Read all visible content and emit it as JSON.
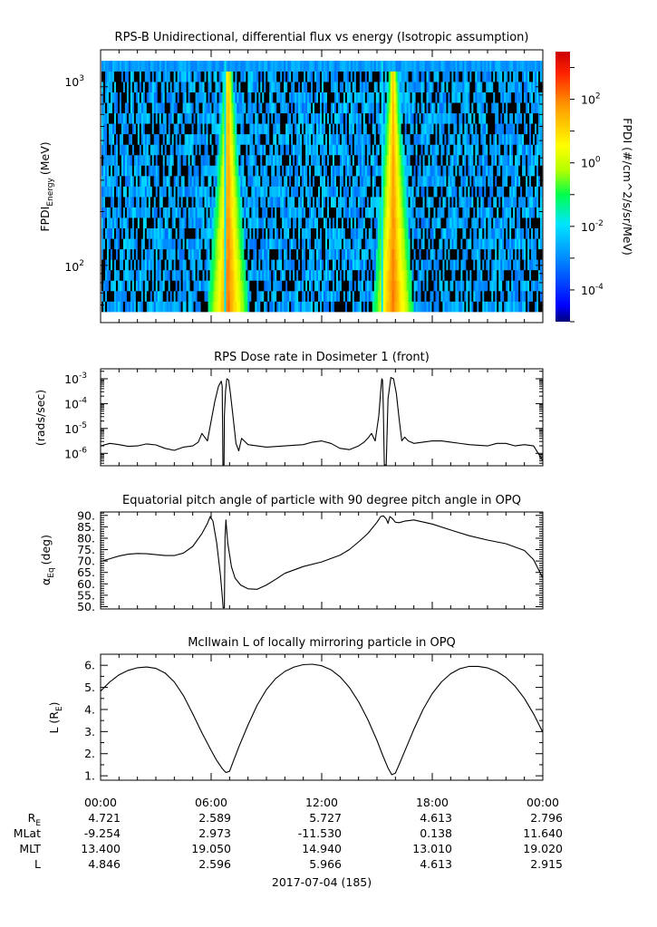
{
  "chart_data": [
    {
      "type": "heatmap",
      "title": "RPS-B  Unidirectional, differential flux vs energy (Isotropic assumption)",
      "ylabel_main": "FPDI",
      "ylabel_sub": "Energy",
      "ylabel_unit": "(MeV)",
      "yscale": "log",
      "ylim": [
        55,
        1400
      ],
      "ytick_labels": [
        {
          "value": 1000,
          "base": "10",
          "exp": "3"
        },
        {
          "value": 100,
          "base": "10",
          "exp": "2"
        }
      ],
      "energy_bin_count": 24,
      "time_bin_count": 244,
      "x_range_hours": [
        0,
        24
      ],
      "enhancements": [
        {
          "center_hours": 6.9,
          "min_half_width_hours": 0.28,
          "max_half_width_hours": 1.1,
          "peak_log10_flux": 2.2
        },
        {
          "center_hours": 15.9,
          "min_half_width_hours": 0.28,
          "max_half_width_hours": 1.1,
          "peak_log10_flux": 2.2
        }
      ],
      "gaps_hours": [
        [
          6.65,
          6.78
        ],
        [
          15.2,
          15.36
        ]
      ],
      "colorbar": {
        "label": "FPDI (#/cm^2/s/sr/MeV)",
        "scale": "log",
        "range_log10": [
          -5,
          3.5
        ],
        "ticks": [
          {
            "value_log10": 2,
            "base": "10",
            "exp": "2"
          },
          {
            "value_log10": 0,
            "base": "10",
            "exp": "0"
          },
          {
            "value_log10": -2,
            "base": "10",
            "exp": "-2"
          },
          {
            "value_log10": -4,
            "base": "10",
            "exp": "-4"
          }
        ],
        "colors": [
          "#00007a",
          "#0000ff",
          "#0080ff",
          "#00e5ff",
          "#00ff4c",
          "#b3ff00",
          "#ffff00",
          "#ff9900",
          "#ff2200",
          "#cc0000"
        ]
      }
    },
    {
      "type": "line",
      "title": "RPS  Dose rate in Dosimeter 1 (front)",
      "ylabel": "(rads/sec)",
      "yscale": "log",
      "ylim_log10": [
        -6.5,
        -2.6
      ],
      "ytick_labels": [
        {
          "value_log10": -3,
          "base": "10",
          "exp": "-3"
        },
        {
          "value_log10": -4,
          "base": "10",
          "exp": "-4"
        },
        {
          "value_log10": -5,
          "base": "10",
          "exp": "-5"
        },
        {
          "value_log10": -6,
          "base": "10",
          "exp": "-6"
        }
      ],
      "x_hours": [
        0,
        0.5,
        1,
        1.5,
        2,
        2.5,
        3,
        3.5,
        4,
        4.5,
        5,
        5.3,
        5.5,
        5.8,
        6.0,
        6.2,
        6.4,
        6.55,
        6.6,
        6.62,
        6.64,
        6.7,
        6.72,
        6.78,
        6.85,
        6.95,
        7.05,
        7.2,
        7.35,
        7.5,
        7.65,
        7.8,
        8.0,
        8.5,
        9,
        10,
        11,
        11.5,
        12,
        12.5,
        13,
        13.5,
        14,
        14.3,
        14.5,
        14.7,
        14.9,
        15.1,
        15.2,
        15.26,
        15.3,
        15.34,
        15.4,
        15.5,
        15.6,
        15.75,
        15.9,
        16.05,
        16.2,
        16.35,
        16.5,
        16.7,
        17,
        17.5,
        18,
        18.5,
        19,
        20,
        21,
        21.5,
        22,
        22.5,
        23,
        23.5,
        24
      ],
      "y_log10": [
        -5.7,
        -5.6,
        -5.65,
        -5.72,
        -5.7,
        -5.62,
        -5.66,
        -5.8,
        -5.88,
        -5.75,
        -5.7,
        -5.55,
        -5.2,
        -5.5,
        -4.7,
        -3.9,
        -3.3,
        -3.1,
        -3.3,
        -4.8,
        -6.5,
        -6.5,
        -4.5,
        -3.5,
        -3.0,
        -3.05,
        -3.6,
        -4.6,
        -5.6,
        -5.9,
        -5.4,
        -5.5,
        -5.65,
        -5.7,
        -5.75,
        -5.7,
        -5.65,
        -5.55,
        -5.5,
        -5.6,
        -5.8,
        -5.85,
        -5.7,
        -5.55,
        -5.4,
        -5.2,
        -5.5,
        -4.5,
        -3.5,
        -3.0,
        -3.05,
        -4.0,
        -6.5,
        -6.5,
        -3.8,
        -2.95,
        -3.0,
        -3.6,
        -4.6,
        -5.5,
        -5.35,
        -5.5,
        -5.6,
        -5.55,
        -5.5,
        -5.5,
        -5.55,
        -5.65,
        -5.7,
        -5.6,
        -5.6,
        -5.7,
        -5.65,
        -5.7,
        -6.3
      ]
    },
    {
      "type": "line",
      "title": "Equatorial pitch angle of particle with 90 degree pitch angle in OPQ",
      "ylabel_main": "α",
      "ylabel_sub": "Eq",
      "ylabel_unit": "(deg)",
      "ylim": [
        49,
        91.5
      ],
      "yticks": [
        "90.",
        "85.",
        "80.",
        "75.",
        "70.",
        "65.",
        "60.",
        "55.",
        "50."
      ],
      "x_hours": [
        0,
        0.5,
        1,
        1.5,
        2,
        2.5,
        3,
        3.5,
        4,
        4.5,
        5,
        5.5,
        5.8,
        5.95,
        6.1,
        6.3,
        6.5,
        6.6,
        6.65,
        6.72,
        6.75,
        6.8,
        6.9,
        7.1,
        7.3,
        7.6,
        8,
        8.5,
        9,
        9.5,
        10,
        11,
        12,
        13,
        13.5,
        14,
        14.5,
        15,
        15.2,
        15.35,
        15.5,
        15.6,
        15.7,
        15.85,
        16,
        16.2,
        16.5,
        17,
        18,
        19,
        20,
        21,
        22,
        23,
        23.5,
        24
      ],
      "y": [
        69.8,
        71,
        72.2,
        73,
        73.3,
        73.2,
        72.8,
        72.4,
        72.4,
        73.5,
        76.4,
        82,
        86.5,
        89.5,
        87.5,
        78,
        64,
        55,
        49.5,
        49.5,
        80,
        88,
        78,
        67.5,
        62.5,
        59.5,
        57.8,
        57.6,
        59.5,
        62,
        64.6,
        67.6,
        69.6,
        72.6,
        75,
        78.4,
        82,
        87,
        89.5,
        89.8,
        88.5,
        86.5,
        89.5,
        88.5,
        87,
        86.8,
        87.5,
        88,
        86.2,
        83.6,
        81.1,
        79.2,
        77.6,
        74.6,
        70.6,
        62.6
      ]
    },
    {
      "type": "line",
      "title": "McIlwain L of locally mirroring particle in OPQ",
      "ylabel_main": "L (R",
      "ylabel_sub": "E",
      "ylabel_unit": ")",
      "ylim": [
        0.8,
        6.5
      ],
      "yticks": [
        "6.",
        "5.",
        "4.",
        "3.",
        "2.",
        "1."
      ],
      "x_hours": [
        0,
        0.5,
        1,
        1.5,
        2,
        2.5,
        3,
        3.5,
        4,
        4.5,
        5,
        5.5,
        6,
        6.3,
        6.6,
        6.8,
        7.0,
        7.2,
        7.5,
        8,
        8.5,
        9,
        9.5,
        10,
        10.5,
        11,
        11.5,
        12,
        12.5,
        13,
        13.5,
        14,
        14.5,
        15,
        15.3,
        15.6,
        15.8,
        16,
        16.2,
        16.5,
        17,
        17.5,
        18,
        18.5,
        19,
        19.5,
        20,
        20.5,
        21,
        21.5,
        22,
        22.5,
        23,
        23.5,
        24
      ],
      "y": [
        4.83,
        5.25,
        5.57,
        5.77,
        5.89,
        5.92,
        5.86,
        5.65,
        5.25,
        4.62,
        3.8,
        2.95,
        2.15,
        1.7,
        1.33,
        1.15,
        1.2,
        1.65,
        2.3,
        3.3,
        4.2,
        4.9,
        5.4,
        5.72,
        5.92,
        6.03,
        6.05,
        5.98,
        5.8,
        5.48,
        5.0,
        4.35,
        3.55,
        2.6,
        1.95,
        1.35,
        1.05,
        1.12,
        1.5,
        2.1,
        3.1,
        4.0,
        4.72,
        5.25,
        5.62,
        5.85,
        5.95,
        5.95,
        5.88,
        5.72,
        5.45,
        5.05,
        4.5,
        3.8,
        2.97
      ]
    }
  ],
  "x_axis": {
    "tick_labels": [
      "00:00",
      "06:00",
      "12:00",
      "18:00",
      "00:00"
    ],
    "date_label": "2017-07-04 (185)"
  },
  "ephemeris": [
    {
      "label": "R",
      "label_sub": "E",
      "values": [
        "4.721",
        "2.589",
        "5.727",
        "4.613",
        "2.796"
      ]
    },
    {
      "label": "MLat",
      "label_sub": "",
      "values": [
        "-9.254",
        "2.973",
        "-11.530",
        "0.138",
        "11.640"
      ]
    },
    {
      "label": "MLT",
      "label_sub": "",
      "values": [
        "13.400",
        "19.050",
        "14.940",
        "13.010",
        "19.020"
      ]
    },
    {
      "label": "L",
      "label_sub": "",
      "values": [
        "4.846",
        "2.596",
        "5.966",
        "4.613",
        "2.915"
      ]
    }
  ]
}
